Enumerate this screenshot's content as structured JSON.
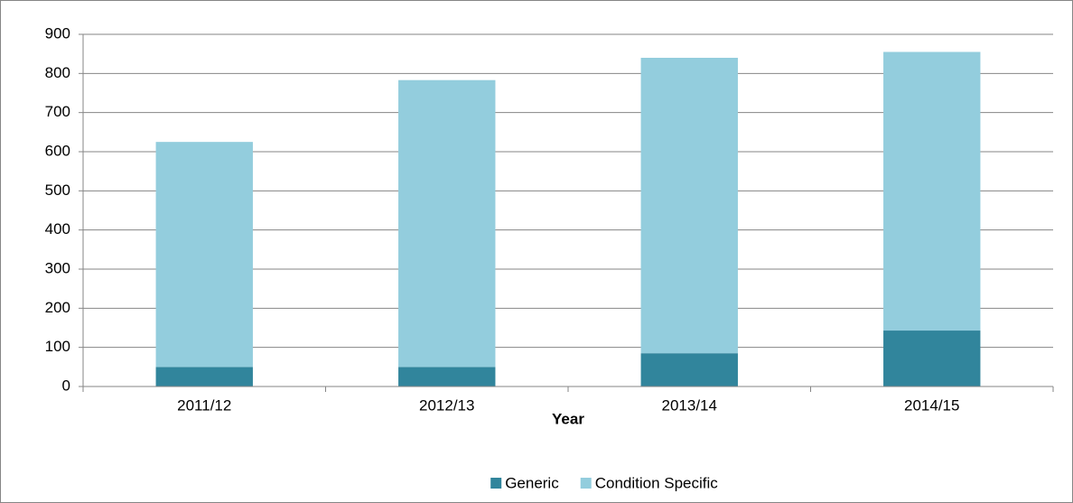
{
  "chart_data": {
    "type": "stacked_bar",
    "x_label": "Year",
    "categories": [
      "2011/12",
      "2012/13",
      "2013/14",
      "2014/15"
    ],
    "series": [
      {
        "name": "Generic",
        "color": "#31859c",
        "values": [
          50,
          50,
          85,
          143
        ]
      },
      {
        "name": "Condition Specific",
        "color": "#93cddd",
        "values": [
          575,
          733,
          755,
          712
        ]
      }
    ],
    "ylim": [
      0,
      900
    ],
    "yticks": [
      0,
      100,
      200,
      300,
      400,
      500,
      600,
      700,
      800,
      900
    ],
    "grid": true,
    "legend": "bottom"
  }
}
